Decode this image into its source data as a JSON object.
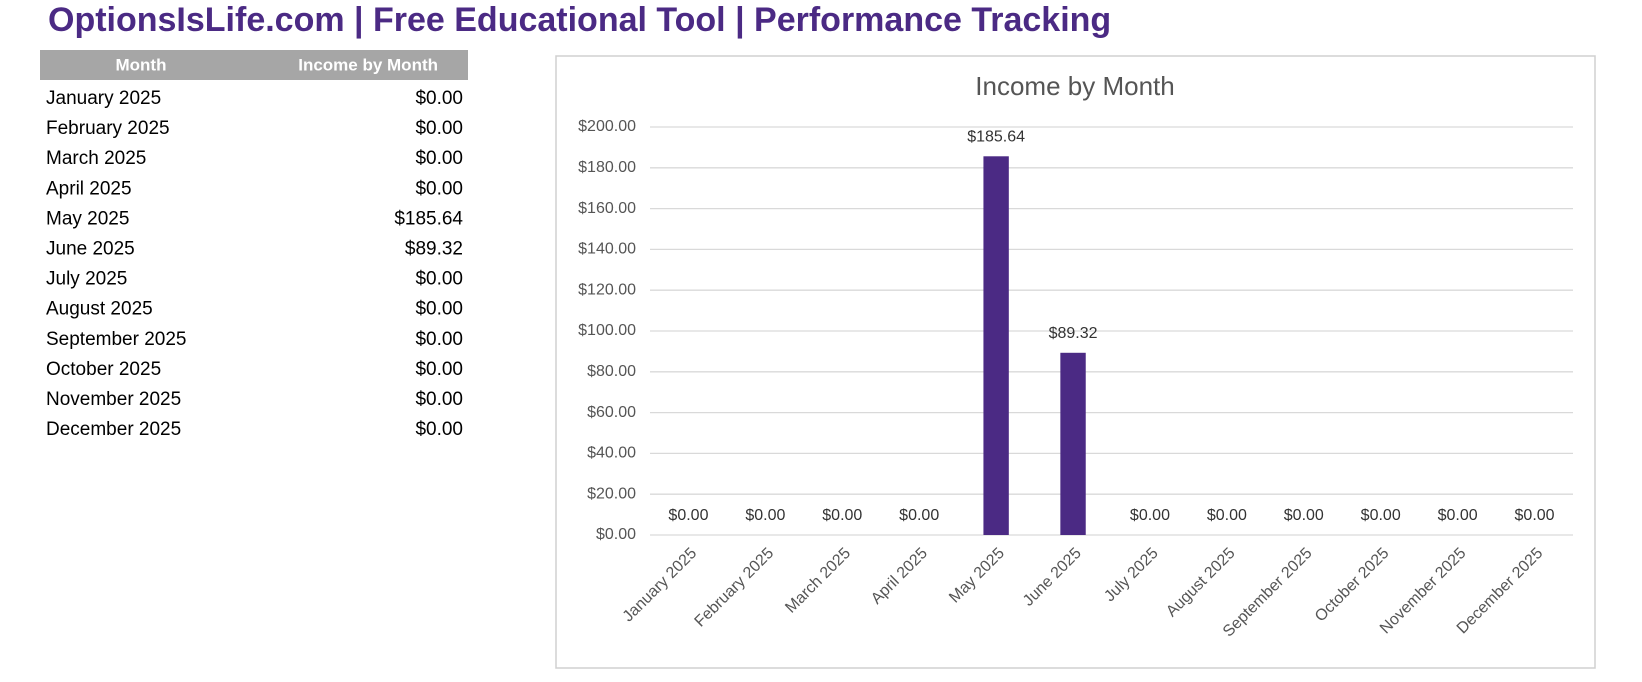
{
  "header": {
    "title": "OptionsIsLife.com | Free Educational Tool | Performance Tracking"
  },
  "table": {
    "headers": [
      "Month",
      "Income by Month"
    ],
    "rows": [
      [
        "January 2025",
        "$0.00"
      ],
      [
        "February 2025",
        "$0.00"
      ],
      [
        "March 2025",
        "$0.00"
      ],
      [
        "April 2025",
        "$0.00"
      ],
      [
        "May 2025",
        "$185.64"
      ],
      [
        "June 2025",
        "$89.32"
      ],
      [
        "July 2025",
        "$0.00"
      ],
      [
        "August 2025",
        "$0.00"
      ],
      [
        "September 2025",
        "$0.00"
      ],
      [
        "October 2025",
        "$0.00"
      ],
      [
        "November 2025",
        "$0.00"
      ],
      [
        "December 2025",
        "$0.00"
      ]
    ]
  },
  "chart_data": {
    "type": "bar",
    "title": "Income by Month",
    "categories": [
      "January 2025",
      "February 2025",
      "March 2025",
      "April 2025",
      "May 2025",
      "June 2025",
      "July 2025",
      "August 2025",
      "September 2025",
      "October 2025",
      "November 2025",
      "December 2025"
    ],
    "values": [
      0,
      0,
      0,
      0,
      185.64,
      89.32,
      0,
      0,
      0,
      0,
      0,
      0
    ],
    "value_labels": [
      "$0.00",
      "$0.00",
      "$0.00",
      "$0.00",
      "$185.64",
      "$89.32",
      "$0.00",
      "$0.00",
      "$0.00",
      "$0.00",
      "$0.00",
      "$0.00"
    ],
    "color": "#4b2a84",
    "ylim": [
      0,
      200
    ],
    "yticks": [
      {
        "value": 0,
        "label": "$0.00"
      },
      {
        "value": 20,
        "label": "$20.00"
      },
      {
        "value": 40,
        "label": "$40.00"
      },
      {
        "value": 60,
        "label": "$60.00"
      },
      {
        "value": 80,
        "label": "$80.00"
      },
      {
        "value": 100,
        "label": "$100.00"
      },
      {
        "value": 120,
        "label": "$120.00"
      },
      {
        "value": 140,
        "label": "$140.00"
      },
      {
        "value": 160,
        "label": "$160.00"
      },
      {
        "value": 180,
        "label": "$180.00"
      },
      {
        "value": 200,
        "label": "$200.00"
      }
    ],
    "grid": true
  }
}
